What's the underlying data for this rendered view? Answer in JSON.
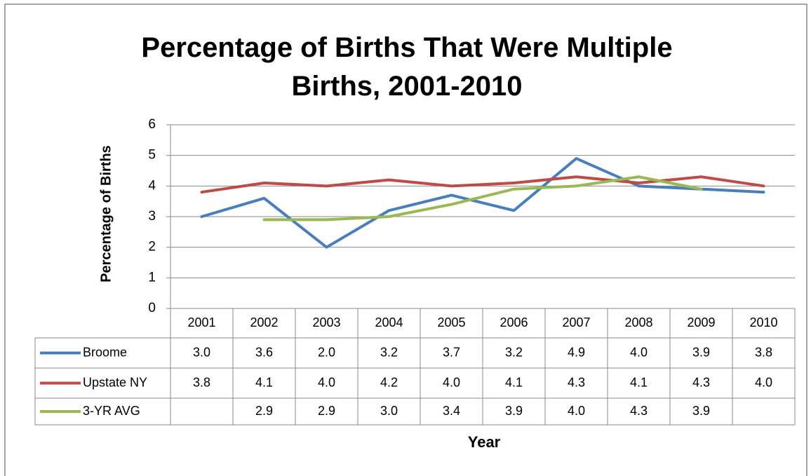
{
  "chart_data": {
    "type": "line",
    "title": "Percentage of Births That Were Multiple Births, 2001-2010",
    "ylabel": "Percentage of Births",
    "xlabel": "Year",
    "categories": [
      "2001",
      "2002",
      "2003",
      "2004",
      "2005",
      "2006",
      "2007",
      "2008",
      "2009",
      "2010"
    ],
    "ylim": [
      0,
      6
    ],
    "yticks": [
      0,
      1,
      2,
      3,
      4,
      5,
      6
    ],
    "grid": true,
    "data_table": true,
    "series": [
      {
        "name": "Broome",
        "color": "#4a7ebb",
        "values": [
          3.0,
          3.6,
          2.0,
          3.2,
          3.7,
          3.2,
          4.9,
          4.0,
          3.9,
          3.8
        ],
        "value_labels": [
          "3.0",
          "3.6",
          "2.0",
          "3.2",
          "3.7",
          "3.2",
          "4.9",
          "4.0",
          "3.9",
          "3.8"
        ]
      },
      {
        "name": "Upstate NY",
        "color": "#be4b48",
        "values": [
          3.8,
          4.1,
          4.0,
          4.2,
          4.0,
          4.1,
          4.3,
          4.1,
          4.3,
          4.0
        ],
        "value_labels": [
          "3.8",
          "4.1",
          "4.0",
          "4.2",
          "4.0",
          "4.1",
          "4.3",
          "4.1",
          "4.3",
          "4.0"
        ]
      },
      {
        "name": "3-YR AVG",
        "color": "#98b954",
        "values": [
          null,
          2.9,
          2.9,
          3.0,
          3.4,
          3.9,
          4.0,
          4.3,
          3.9,
          null
        ],
        "value_labels": [
          null,
          "2.9",
          "2.9",
          "3.0",
          "3.4",
          "3.9",
          "4.0",
          "4.3",
          "3.9",
          null
        ]
      }
    ]
  }
}
